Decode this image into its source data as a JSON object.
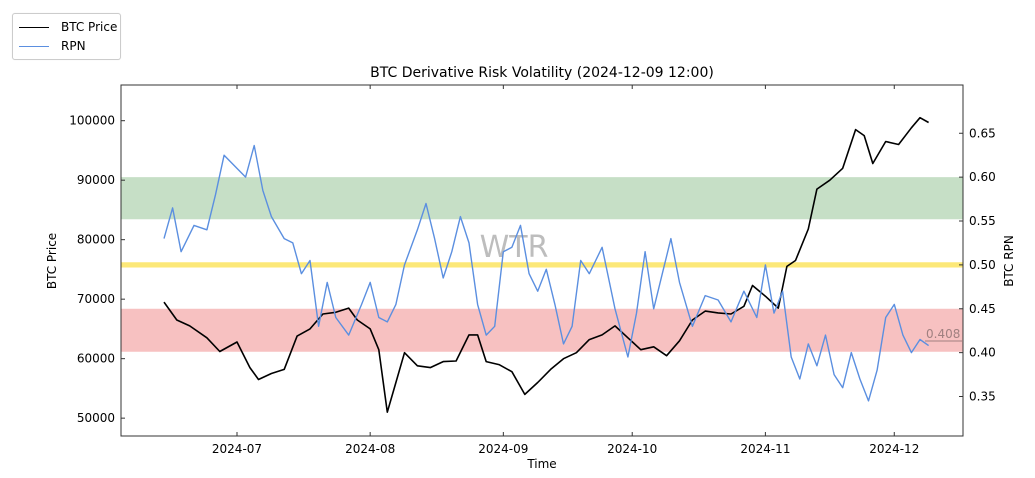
{
  "chart_data": {
    "type": "line",
    "title": "BTC Derivative Risk Volatility (2024-12-09 12:00)",
    "xlabel": "Time",
    "ylabel_left": "BTC Price",
    "ylabel_right": "BTC RPN",
    "watermark": "WTR",
    "legend": {
      "placement": "top-left (outside plot)",
      "entries": [
        {
          "label": "BTC Price",
          "color": "#000000"
        },
        {
          "label": "RPN",
          "color": "#5b8fe0"
        }
      ]
    },
    "x_range": [
      "2024-06-04",
      "2024-12-17"
    ],
    "x_ticks": [
      "2024-07",
      "2024-08",
      "2024-09",
      "2024-10",
      "2024-11",
      "2024-12"
    ],
    "y_left_range": [
      47000,
      106000
    ],
    "y_left_ticks": [
      50000,
      60000,
      70000,
      80000,
      90000,
      100000
    ],
    "y_right_range": [
      0.305,
      0.705
    ],
    "y_right_ticks": [
      "0.35",
      "0.40",
      "0.45",
      "0.50",
      "0.55",
      "0.60",
      "0.65"
    ],
    "bands": [
      {
        "name": "high-risk-zone",
        "axis": "right",
        "from": 0.552,
        "to": 0.6,
        "color": "#c6dfc6"
      },
      {
        "name": "mid-line",
        "axis": "right",
        "from": 0.497,
        "to": 0.503,
        "color": "#fce878"
      },
      {
        "name": "low-risk-zone",
        "axis": "right",
        "from": 0.401,
        "to": 0.45,
        "color": "#f7c1c1"
      }
    ],
    "last_value_label": "0.408",
    "series": [
      {
        "name": "BTC Price",
        "axis": "left",
        "color": "#000000",
        "x": [
          "2024-06-14",
          "2024-06-17",
          "2024-06-20",
          "2024-06-24",
          "2024-06-27",
          "2024-07-01",
          "2024-07-04",
          "2024-07-06",
          "2024-07-09",
          "2024-07-12",
          "2024-07-15",
          "2024-07-18",
          "2024-07-21",
          "2024-07-24",
          "2024-07-27",
          "2024-07-29",
          "2024-08-01",
          "2024-08-03",
          "2024-08-05",
          "2024-08-07",
          "2024-08-09",
          "2024-08-12",
          "2024-08-15",
          "2024-08-18",
          "2024-08-21",
          "2024-08-24",
          "2024-08-26",
          "2024-08-28",
          "2024-08-31",
          "2024-09-03",
          "2024-09-06",
          "2024-09-09",
          "2024-09-12",
          "2024-09-15",
          "2024-09-18",
          "2024-09-21",
          "2024-09-24",
          "2024-09-27",
          "2024-09-30",
          "2024-10-03",
          "2024-10-06",
          "2024-10-09",
          "2024-10-12",
          "2024-10-15",
          "2024-10-18",
          "2024-10-21",
          "2024-10-24",
          "2024-10-27",
          "2024-10-29",
          "2024-11-01",
          "2024-11-04",
          "2024-11-06",
          "2024-11-08",
          "2024-11-11",
          "2024-11-13",
          "2024-11-16",
          "2024-11-19",
          "2024-11-22",
          "2024-11-24",
          "2024-11-26",
          "2024-11-29",
          "2024-12-02",
          "2024-12-05",
          "2024-12-07",
          "2024-12-09"
        ],
        "values": [
          69500,
          66500,
          65500,
          63500,
          61200,
          62800,
          58500,
          56500,
          57500,
          58200,
          63800,
          65000,
          67500,
          67800,
          68500,
          66500,
          65000,
          61500,
          51000,
          56000,
          61000,
          58800,
          58500,
          59500,
          59600,
          64000,
          64000,
          59500,
          59000,
          57800,
          54000,
          56000,
          58200,
          60000,
          61000,
          63200,
          64000,
          65500,
          63500,
          61500,
          62000,
          60500,
          63000,
          66500,
          68000,
          67700,
          67500,
          68800,
          72300,
          70500,
          68500,
          75500,
          76500,
          81800,
          88500,
          90000,
          92000,
          98500,
          97500,
          92800,
          96500,
          96000,
          98800,
          100500,
          99700
        ]
      },
      {
        "name": "RPN",
        "axis": "right",
        "color": "#5b8fe0",
        "x": [
          "2024-06-14",
          "2024-06-16",
          "2024-06-18",
          "2024-06-21",
          "2024-06-24",
          "2024-06-26",
          "2024-06-28",
          "2024-07-01",
          "2024-07-03",
          "2024-07-05",
          "2024-07-07",
          "2024-07-09",
          "2024-07-12",
          "2024-07-14",
          "2024-07-16",
          "2024-07-18",
          "2024-07-20",
          "2024-07-22",
          "2024-07-24",
          "2024-07-27",
          "2024-07-30",
          "2024-08-01",
          "2024-08-03",
          "2024-08-05",
          "2024-08-07",
          "2024-08-09",
          "2024-08-12",
          "2024-08-14",
          "2024-08-16",
          "2024-08-18",
          "2024-08-20",
          "2024-08-22",
          "2024-08-24",
          "2024-08-26",
          "2024-08-28",
          "2024-08-30",
          "2024-09-01",
          "2024-09-03",
          "2024-09-05",
          "2024-09-07",
          "2024-09-09",
          "2024-09-11",
          "2024-09-13",
          "2024-09-15",
          "2024-09-17",
          "2024-09-19",
          "2024-09-21",
          "2024-09-24",
          "2024-09-27",
          "2024-09-30",
          "2024-10-02",
          "2024-10-04",
          "2024-10-06",
          "2024-10-08",
          "2024-10-10",
          "2024-10-12",
          "2024-10-15",
          "2024-10-18",
          "2024-10-21",
          "2024-10-24",
          "2024-10-27",
          "2024-10-30",
          "2024-11-01",
          "2024-11-03",
          "2024-11-05",
          "2024-11-07",
          "2024-11-09",
          "2024-11-11",
          "2024-11-13",
          "2024-11-15",
          "2024-11-17",
          "2024-11-19",
          "2024-11-21",
          "2024-11-23",
          "2024-11-25",
          "2024-11-27",
          "2024-11-29",
          "2024-12-01",
          "2024-12-03",
          "2024-12-05",
          "2024-12-07",
          "2024-12-09"
        ],
        "values": [
          0.53,
          0.565,
          0.515,
          0.545,
          0.54,
          0.58,
          0.625,
          0.61,
          0.6,
          0.636,
          0.585,
          0.555,
          0.53,
          0.525,
          0.49,
          0.505,
          0.43,
          0.48,
          0.44,
          0.42,
          0.455,
          0.48,
          0.44,
          0.435,
          0.455,
          0.5,
          0.54,
          0.57,
          0.53,
          0.485,
          0.515,
          0.555,
          0.525,
          0.455,
          0.42,
          0.43,
          0.515,
          0.52,
          0.545,
          0.49,
          0.47,
          0.495,
          0.455,
          0.41,
          0.43,
          0.505,
          0.49,
          0.52,
          0.45,
          0.395,
          0.445,
          0.515,
          0.45,
          0.49,
          0.53,
          0.48,
          0.43,
          0.465,
          0.46,
          0.435,
          0.47,
          0.44,
          0.5,
          0.445,
          0.47,
          0.395,
          0.37,
          0.41,
          0.385,
          0.42,
          0.375,
          0.36,
          0.4,
          0.37,
          0.345,
          0.38,
          0.44,
          0.455,
          0.42,
          0.4,
          0.415,
          0.408
        ]
      }
    ]
  }
}
